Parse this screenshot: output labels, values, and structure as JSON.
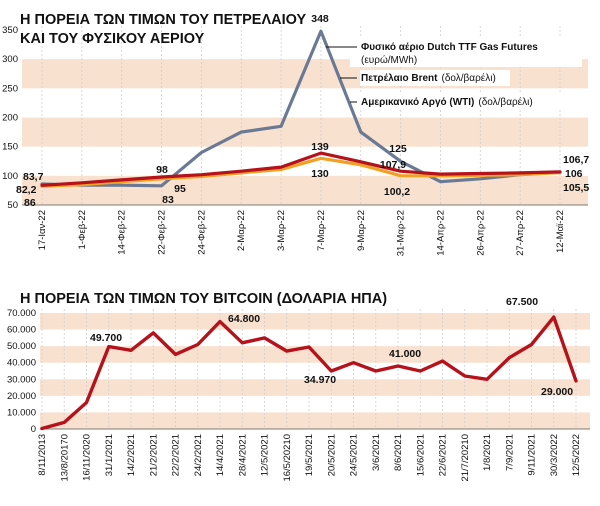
{
  "chart_data": [
    {
      "type": "line",
      "title_lines": [
        "Η ΠΟΡΕΙΑ ΤΩΝ ΤΙΜΩΝ ΤΟΥ ΠΕΤΡΕΛΑΙΟΥ",
        "ΚΑΙ ΤΟΥ ΦΥΣΙΚΟΥ ΑΕΡΙΟΥ"
      ],
      "categories": [
        "17-Ιαν-22",
        "1-Φεβ-22",
        "14-Φεβ-22",
        "22-Φεβ-22",
        "24-Φεβ-22",
        "2-Μαρ-22",
        "3-Μαρ-22",
        "7-Μαρ-22",
        "9-Μαρ-22",
        "31-Μαρ-22",
        "14-Απρ-22",
        "26-Απρ-22",
        "27-Απρ-22",
        "12-Μαϊ-22"
      ],
      "ylim": [
        50,
        350
      ],
      "yticks": [
        "50",
        "100",
        "150",
        "200",
        "250",
        "300",
        "350"
      ],
      "ytick_values": [
        50,
        100,
        150,
        200,
        250,
        300,
        350
      ],
      "grid": "horizontal-bands",
      "legend_position": "top-right",
      "series": [
        {
          "name_bold": "Φυσικό αέριο Dutch TTF Gas Futures",
          "name_unit": "(ευρώ/MWh)",
          "color": "#6b7a94",
          "values": [
            86,
            84,
            84,
            83,
            140,
            175,
            185,
            348,
            175,
            125,
            90,
            95,
            102,
            106
          ]
        },
        {
          "name_bold": "Πετρέλαιο Brent",
          "name_unit": "(δολ/βαρέλι)",
          "color": "#b5121b",
          "values": [
            83.7,
            88,
            93,
            98,
            102,
            108,
            115,
            139,
            124,
            107.9,
            103,
            104,
            105,
            106.7
          ]
        },
        {
          "name_bold": "Αμερικανικό Αργό (WTI)",
          "name_unit": "(δολ/βαρέλι)",
          "color": "#f0a022",
          "values": [
            82.2,
            85,
            90,
            95,
            99,
            105,
            111,
            130,
            119,
            100.2,
            100,
            101,
            102,
            105.5
          ]
        }
      ],
      "data_labels": [
        "348",
        "139",
        "130",
        "125",
        "107,9",
        "100,2",
        "98",
        "95",
        "83",
        "83,7",
        "82,2",
        "86",
        "106,7",
        "106",
        "105,5"
      ]
    },
    {
      "type": "line",
      "title": "Η ΠΟΡΕΙΑ ΤΩΝ ΤΙΜΩΝ ΤΟΥ BITCOIN (ΔΟΛΑΡΙΑ ΗΠΑ)",
      "categories": [
        "8/11/2013",
        "13/8/20170",
        "16/11/2020",
        "31/1/2021",
        "14/2/2021",
        "21/2/2021",
        "22/2/2021",
        "24/2/2021",
        "14/4/2021",
        "28/4/2021",
        "12/5/2021",
        "16/5/20210",
        "19/5/2021",
        "20/5/2021",
        "24/5/2021",
        "3/6/2021",
        "8/6/2021",
        "15/6/2021",
        "22/6/2021",
        "21/7/20210",
        "1/8/2021",
        "7/9/2021",
        "9/11/2021",
        "30/3/2022",
        "12/5/2022"
      ],
      "ylim": [
        0,
        70000
      ],
      "yticks": [
        "0",
        "10.000",
        "20.000",
        "30.000",
        "40.000",
        "50.000",
        "60.000",
        "70.000"
      ],
      "ytick_values": [
        0,
        10000,
        20000,
        30000,
        40000,
        50000,
        60000,
        70000
      ],
      "grid": "horizontal-bands",
      "series": [
        {
          "color": "#b5121b",
          "values": [
            300,
            4000,
            16000,
            49700,
            47500,
            58000,
            45000,
            51000,
            64800,
            52000,
            55000,
            47000,
            49500,
            34970,
            40000,
            35000,
            38000,
            35000,
            41000,
            32000,
            30000,
            43000,
            51000,
            67500,
            29000
          ]
        }
      ],
      "data_labels": [
        "49.700",
        "64.800",
        "34.970",
        "41.000",
        "67.500",
        "29.000"
      ]
    }
  ]
}
